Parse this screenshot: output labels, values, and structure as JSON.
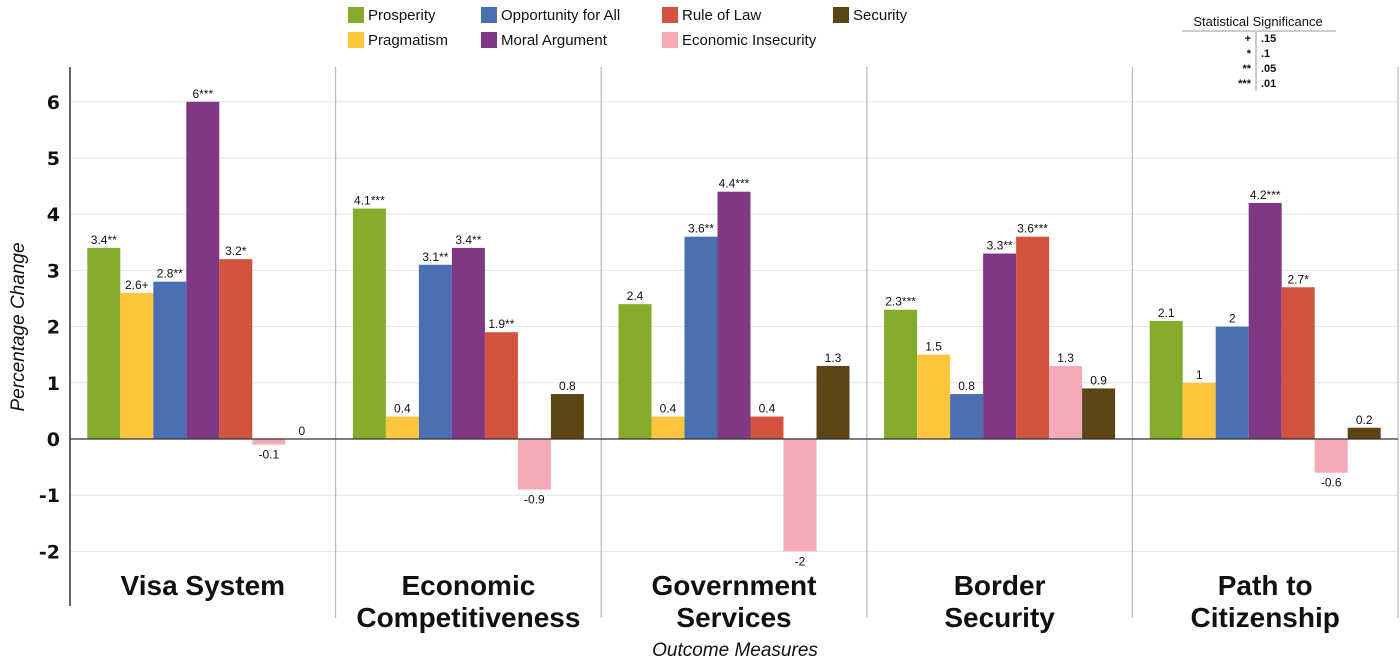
{
  "chart_data": {
    "type": "bar",
    "xlabel": "Outcome Measures",
    "ylabel": "Percentage Change",
    "ylim": [
      -2.5,
      6.6
    ],
    "yticks": [
      -2,
      -1,
      0,
      1,
      2,
      3,
      4,
      5,
      6
    ],
    "grid": true,
    "legend_position": "top",
    "categories": [
      [
        "Visa System"
      ],
      [
        "Economic",
        "Competitiveness"
      ],
      [
        "Government",
        "Services"
      ],
      [
        "Border",
        "Security"
      ],
      [
        "Path to",
        "Citizenship"
      ]
    ],
    "series": [
      {
        "name": "Prosperity",
        "color": "#84ac2a",
        "values": [
          3.4,
          4.1,
          2.4,
          2.3,
          2.1
        ],
        "labels": [
          "3.4**",
          "4.1***",
          "2.4",
          "2.3***",
          "2.1"
        ]
      },
      {
        "name": "Pragmatism",
        "color": "#fdc63d",
        "values": [
          2.6,
          0.4,
          0.4,
          1.5,
          1
        ],
        "labels": [
          "2.6+",
          "0.4",
          "0.4",
          "1.5",
          "1"
        ]
      },
      {
        "name": "Opportunity for All",
        "color": "#4a70b2",
        "values": [
          2.8,
          3.1,
          3.6,
          0.8,
          2
        ],
        "labels": [
          "2.8**",
          "3.1**",
          "3.6**",
          "0.8",
          "2"
        ]
      },
      {
        "name": "Moral Argument",
        "color": "#7f3884",
        "values": [
          6,
          3.4,
          4.4,
          3.3,
          4.2
        ],
        "labels": [
          "6***",
          "3.4**",
          "4.4***",
          "3.3**",
          "4.2***"
        ]
      },
      {
        "name": "Rule of Law",
        "color": "#d2533e",
        "values": [
          3.2,
          1.9,
          0.4,
          3.6,
          2.7
        ],
        "labels": [
          "3.2*",
          "1.9**",
          "0.4",
          "3.6***",
          "2.7*"
        ]
      },
      {
        "name": "Economic Insecurity",
        "color": "#f5abb7",
        "values": [
          -0.1,
          -0.9,
          -2,
          1.3,
          -0.6
        ],
        "labels": [
          "-0.1",
          "-0.9",
          "-2",
          "1.3",
          "-0.6"
        ]
      },
      {
        "name": "Security",
        "color": "#5b4514",
        "values": [
          0,
          0.8,
          1.3,
          0.9,
          0.2
        ],
        "labels": [
          "0",
          "0.8",
          "1.3",
          "0.9",
          "0.2"
        ]
      }
    ],
    "significance_legend": {
      "title": "Statistical Significance",
      "rows": [
        {
          "symbol": "+",
          "value": ".15"
        },
        {
          "symbol": "*",
          "value": ".1"
        },
        {
          "symbol": "**",
          "value": ".05"
        },
        {
          "symbol": "***",
          "value": ".01"
        }
      ]
    }
  }
}
